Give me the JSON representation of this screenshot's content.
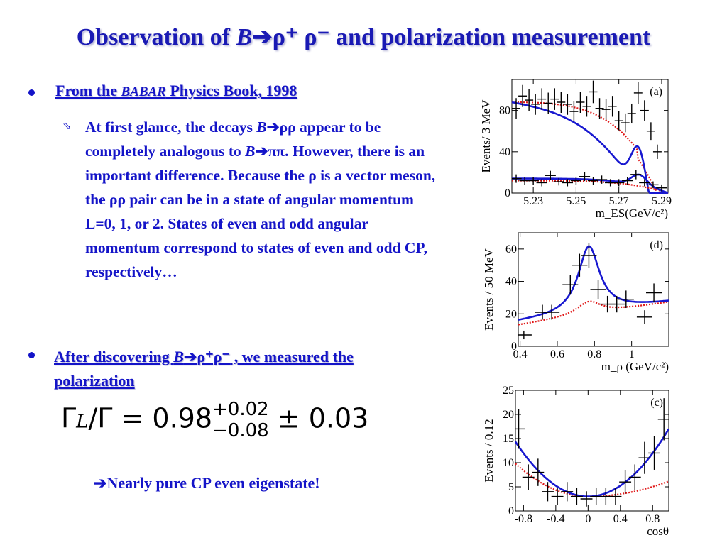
{
  "title": {
    "pre": "Observation of ",
    "b": "B",
    "decay": "ρ⁺ ρ⁻",
    "post": " and polarization measurement"
  },
  "bullet1": {
    "pre": "From the ",
    "babar": "BABAR",
    "post": " Physics Book, 1998"
  },
  "sub": {
    "p1": "At first glance, the decays ",
    "b1": "B",
    "p2": "ρρ appear to be completely analogous to ",
    "b2": "B",
    "p3": "ππ. However, there is an important difference. Because the ρ is a vector meson, the ρρ pair can be in a state of angular momentum L=0, 1, or 2. States of even and odd angular momentum correspond to states of even and odd CP, respectively…"
  },
  "bullet2": {
    "pre": "After discovering ",
    "b": "B",
    "decay": "ρ⁺ρ⁻",
    "post": " , we measured the polarization"
  },
  "formula": {
    "lhs": "Γ",
    "sub": "L",
    "mid": "/Γ = 0.98",
    "sup": "+0.02",
    "subv": "−0.08",
    "tail": " ± 0.03"
  },
  "conclusion": "Nearly pure CP even eigenstate!",
  "chart_data": [
    {
      "type": "scatter",
      "panel": "(a)",
      "ylabel": "Events/ 3 MeV",
      "xlabel": "m_ES(GeV/c²)",
      "xlim": [
        5.22,
        5.293
      ],
      "ylim": [
        0,
        110
      ],
      "xticks": [
        "5.23",
        "5.25",
        "5.27",
        "5.29"
      ],
      "yticks": [
        "0",
        "40",
        "80"
      ],
      "series": [
        {
          "values_x": [
            5.222,
            5.225,
            5.228,
            5.231,
            5.234,
            5.237,
            5.24,
            5.243,
            5.246,
            5.249,
            5.252,
            5.255,
            5.258,
            5.261,
            5.264,
            5.267,
            5.27,
            5.273,
            5.276,
            5.279,
            5.282,
            5.285,
            5.288
          ],
          "values_y": [
            82,
            94,
            90,
            86,
            91,
            87,
            91,
            88,
            86,
            79,
            88,
            84,
            98,
            82,
            81,
            84,
            70,
            68,
            77,
            97,
            80,
            60,
            40
          ]
        },
        {
          "values_x": [
            5.222,
            5.226,
            5.23,
            5.234,
            5.238,
            5.242,
            5.246,
            5.25,
            5.254,
            5.258,
            5.262,
            5.266,
            5.27,
            5.274,
            5.278,
            5.282,
            5.286,
            5.29
          ],
          "values_y": [
            14,
            12,
            12,
            10,
            17,
            11,
            10,
            12,
            16,
            12,
            13,
            10,
            10,
            12,
            18,
            10,
            8,
            5
          ]
        }
      ]
    },
    {
      "type": "scatter",
      "panel": "(d)",
      "ylabel": "Events / 50 MeV",
      "xlabel": "m_ρ (GeV/c²)",
      "xlim": [
        0.39,
        1.2
      ],
      "ylim": [
        0,
        70
      ],
      "xticks": [
        "0.4",
        "0.6",
        "0.8",
        "1"
      ],
      "yticks": [
        "0",
        "20",
        "40",
        "60"
      ],
      "series": [
        {
          "values_x": [
            0.42,
            0.52,
            0.57,
            0.67,
            0.72,
            0.77,
            0.82,
            0.87,
            0.92,
            0.97,
            1.07,
            1.12
          ],
          "values_y": [
            7,
            21,
            21,
            38,
            50,
            56,
            35,
            26,
            26,
            29,
            18,
            33
          ]
        }
      ]
    },
    {
      "type": "scatter",
      "panel": "(c)",
      "ylabel": "Events / 0.12",
      "xlabel": "cosθ",
      "xlim": [
        -0.9,
        1.0
      ],
      "ylim": [
        0,
        25
      ],
      "xticks": [
        "-0.8",
        "-0.4",
        "0",
        "0.4",
        "0.8"
      ],
      "yticks": [
        "0",
        "5",
        "10",
        "15",
        "20",
        "25"
      ],
      "series": [
        {
          "values_x": [
            -0.86,
            -0.74,
            -0.62,
            -0.5,
            -0.38,
            -0.26,
            -0.14,
            -0.02,
            0.1,
            0.22,
            0.34,
            0.46,
            0.58,
            0.7,
            0.82,
            0.94
          ],
          "values_y": [
            17,
            7,
            8,
            4,
            3,
            4,
            3,
            2.5,
            3,
            3,
            3,
            6,
            7,
            11,
            12,
            19
          ]
        }
      ]
    }
  ]
}
